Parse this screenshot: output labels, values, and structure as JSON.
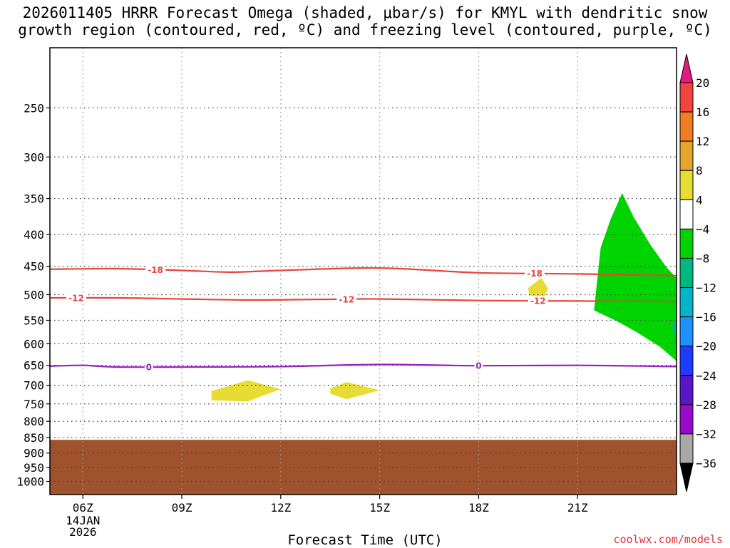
{
  "title_line1": "2026011405 HRRR Forecast Omega (shaded, μbar/s) for KMYL with dendritic snow",
  "title_line2": "growth region (contoured, red, ºC) and freezing level (contoured, purple, ºC)",
  "credit": "coolwx.com/models",
  "chart_data": {
    "type": "time-height cross section",
    "xlabel": "Forecast Time (UTC)",
    "ylabel": "",
    "x_ticks": [
      "06Z",
      "09Z",
      "12Z",
      "15Z",
      "18Z",
      "21Z"
    ],
    "x_tick_hours": [
      6,
      9,
      12,
      15,
      18,
      21
    ],
    "x_date_label": [
      "14JAN",
      "2026"
    ],
    "x_range_hours": [
      5,
      24
    ],
    "y_ticks": [
      250,
      300,
      350,
      400,
      450,
      500,
      550,
      600,
      650,
      700,
      750,
      800,
      850,
      900,
      950,
      1000
    ],
    "y_scale": "log-pressure",
    "y_range_hpa": [
      200,
      1050
    ],
    "grid": "dotted",
    "colorbar": {
      "labels": [
        "20",
        "16",
        "12",
        "8",
        "4",
        "−4",
        "−8",
        "−12",
        "−16",
        "−20",
        "−24",
        "−28",
        "−32",
        "−36"
      ],
      "colors": [
        "#e31b7f",
        "#f2443c",
        "#f07d23",
        "#e4a52a",
        "#e6dc34",
        "#ffffff",
        "#00d400",
        "#00b77f",
        "#00b6c8",
        "#1e90ff",
        "#1e3cff",
        "#5a16c8",
        "#9b0acb",
        "#a8a8a8",
        "#000000"
      ]
    },
    "contours": [
      {
        "name": "-18",
        "color": "#e8433a",
        "label_hours": [
          8.2,
          19.7
        ],
        "points": [
          [
            5,
            455
          ],
          [
            7,
            454
          ],
          [
            9,
            457
          ],
          [
            10.5,
            460
          ],
          [
            12,
            457
          ],
          [
            15,
            453
          ],
          [
            18,
            461
          ],
          [
            21,
            463
          ],
          [
            24,
            466
          ]
        ]
      },
      {
        "name": "-12",
        "color": "#e8433a",
        "label_hours": [
          5.8,
          14.0,
          19.8
        ],
        "points": [
          [
            5,
            506
          ],
          [
            7,
            506
          ],
          [
            9,
            508
          ],
          [
            11,
            510
          ],
          [
            13,
            509
          ],
          [
            15,
            508
          ],
          [
            18,
            511
          ],
          [
            21,
            512
          ],
          [
            24,
            513
          ]
        ]
      },
      {
        "name": "0",
        "color": "#9a1ac8",
        "label_hours": [
          8.0,
          18.0
        ],
        "points": [
          [
            5,
            652
          ],
          [
            6,
            650
          ],
          [
            7,
            654
          ],
          [
            9,
            654
          ],
          [
            12,
            653
          ],
          [
            15,
            648
          ],
          [
            18,
            651
          ],
          [
            21,
            650
          ],
          [
            24,
            653
          ]
        ]
      }
    ],
    "shaded_regions": [
      {
        "value_range": "4 to 8",
        "color": "#e6dc34",
        "points": [
          [
            9.9,
            715
          ],
          [
            11.0,
            687
          ],
          [
            12.0,
            710
          ],
          [
            11.0,
            743
          ],
          [
            9.9,
            740
          ]
        ]
      },
      {
        "value_range": "4 to 8",
        "color": "#e6dc34",
        "points": [
          [
            13.5,
            708
          ],
          [
            14.0,
            692
          ],
          [
            15.0,
            713
          ],
          [
            14.0,
            737
          ],
          [
            13.5,
            722
          ]
        ]
      },
      {
        "value_range": "4 to 8",
        "color": "#e6dc34",
        "points": [
          [
            19.5,
            488
          ],
          [
            19.9,
            470
          ],
          [
            20.1,
            488
          ],
          [
            19.9,
            522
          ],
          [
            19.55,
            505
          ]
        ]
      },
      {
        "value_range": "-4 to -8",
        "color": "#00d400",
        "points": [
          [
            21.7,
            420
          ],
          [
            22.0,
            378
          ],
          [
            22.35,
            343
          ],
          [
            22.7,
            375
          ],
          [
            23.2,
            415
          ],
          [
            23.7,
            452
          ],
          [
            24.0,
            470
          ],
          [
            24,
            640
          ],
          [
            23.5,
            607
          ],
          [
            22.8,
            575
          ],
          [
            22.2,
            552
          ],
          [
            21.5,
            530
          ],
          [
            21.6,
            470
          ]
        ]
      },
      {
        "value_range": "-8 to -12",
        "color": "#00b77f",
        "points": [
          [
            24.0,
            545
          ],
          [
            23.85,
            565
          ],
          [
            24.0,
            590
          ]
        ]
      }
    ],
    "terrain": {
      "color": "#a0522d",
      "surface_hpa": 857
    }
  }
}
